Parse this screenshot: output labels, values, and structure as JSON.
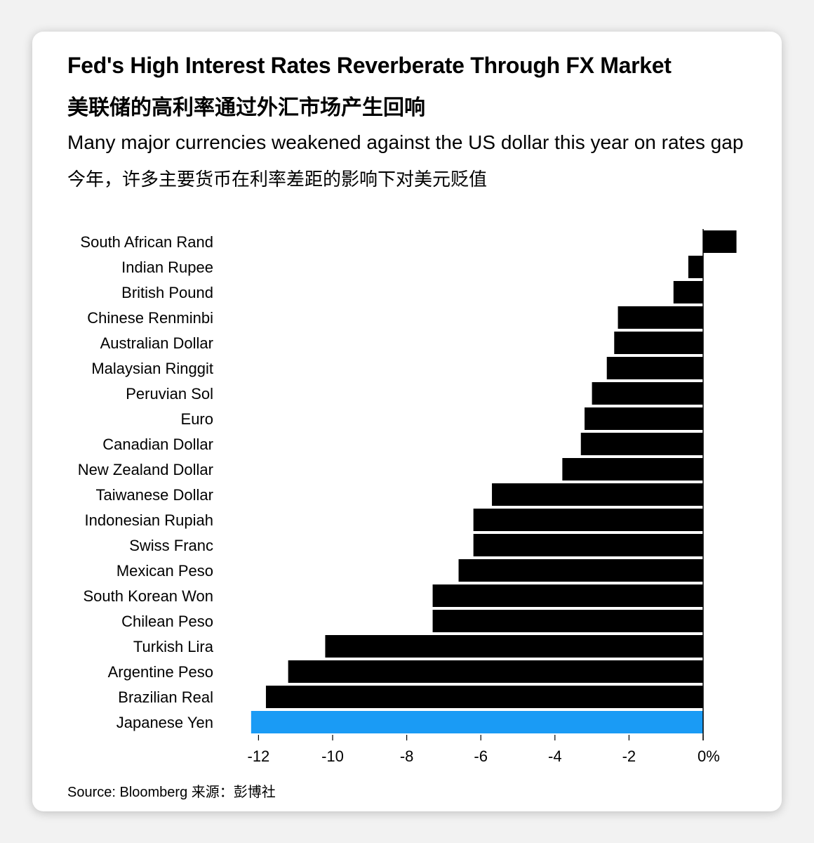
{
  "header": {
    "title": "Fed's High Interest Rates Reverberate Through FX Market",
    "title_cn": "美联储的高利率通过外汇市场产生回响",
    "subtitle": "Many major currencies weakened against the US dollar this year on rates gap",
    "subtitle_cn": "今年，许多主要货币在利率差距的影响下对美元贬值"
  },
  "source": "Source: Bloomberg 来源：彭博社",
  "colors": {
    "bar": "#000000",
    "highlight": "#1a9bf5",
    "axis": "#000000"
  },
  "chart_data": {
    "type": "bar",
    "orientation": "horizontal",
    "title": "Fed's High Interest Rates Reverberate Through FX Market",
    "xlabel": "",
    "ylabel": "",
    "xlim": [
      -12.5,
      0.9
    ],
    "xticks": [
      -12,
      -10,
      -8,
      -6,
      -4,
      -2,
      0
    ],
    "xtick_labels": [
      "-12",
      "-10",
      "-8",
      "-6",
      "-4",
      "-2",
      "0%"
    ],
    "categories": [
      "South African Rand",
      "Indian Rupee",
      "British Pound",
      "Chinese Renminbi",
      "Australian Dollar",
      "Malaysian Ringgit",
      "Peruvian Sol",
      "Euro",
      "Canadian Dollar",
      "New Zealand Dollar",
      "Taiwanese Dollar",
      "Indonesian Rupiah",
      "Swiss Franc",
      "Mexican Peso",
      "South Korean Won",
      "Chilean Peso",
      "Turkish Lira",
      "Argentine Peso",
      "Brazilian Real",
      "Japanese Yen"
    ],
    "values": [
      0.9,
      -0.4,
      -0.8,
      -2.3,
      -2.4,
      -2.6,
      -3.0,
      -3.2,
      -3.3,
      -3.8,
      -5.7,
      -6.2,
      -6.2,
      -6.6,
      -7.3,
      -7.3,
      -10.2,
      -11.2,
      -11.8,
      -12.2
    ],
    "highlight": "Japanese Yen",
    "grid": false,
    "legend": "none"
  }
}
